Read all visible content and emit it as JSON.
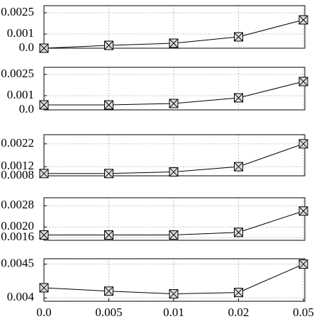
{
  "chart_data": [
    {
      "type": "line",
      "ylim": [
        0,
        0.003
      ],
      "yticks": [
        0.0025,
        0.001,
        {
          "value": 0,
          "label": "0.0"
        }
      ],
      "series": [
        {
          "color": "#000000",
          "values": [
            0.0,
            0.0002,
            0.00035,
            0.0008,
            0.002
          ]
        }
      ]
    },
    {
      "type": "line",
      "ylim": [
        0,
        0.003
      ],
      "yticks": [
        0.0025,
        0.001,
        {
          "value": 0,
          "label": "0.0"
        }
      ],
      "series": [
        {
          "color": "#000000",
          "values": [
            0.00035,
            0.00035,
            0.00045,
            0.00085,
            0.002
          ]
        }
      ]
    },
    {
      "type": "line",
      "ylim": [
        0.0008,
        0.0026
      ],
      "yticks": [
        0.0022,
        0.0012,
        0.0008
      ],
      "series": [
        {
          "color": "#000000",
          "values": [
            0.0009,
            0.0009,
            0.00097,
            0.0012,
            0.0022
          ]
        }
      ]
    },
    {
      "type": "line",
      "ylim": [
        0.0015,
        0.0031
      ],
      "yticks": [
        {
          "value": 0.0028,
          "label": "0.0028"
        },
        {
          "value": 0.002,
          "label": "0.0020"
        },
        0.0016
      ],
      "series": [
        {
          "color": "#000000",
          "values": [
            0.0017,
            0.0017,
            0.0017,
            0.0018,
            0.0026
          ]
        }
      ]
    },
    {
      "type": "line",
      "ylim": [
        0.00395,
        0.00458
      ],
      "yticks": [
        0.0045,
        0.004
      ],
      "categories": [
        "0.0",
        "0.005",
        "0.01",
        "0.02",
        "0.05"
      ],
      "series": [
        {
          "color": "#000000",
          "values": [
            0.00415,
            0.0041,
            0.00406,
            0.00408,
            0.0045
          ]
        }
      ]
    }
  ]
}
